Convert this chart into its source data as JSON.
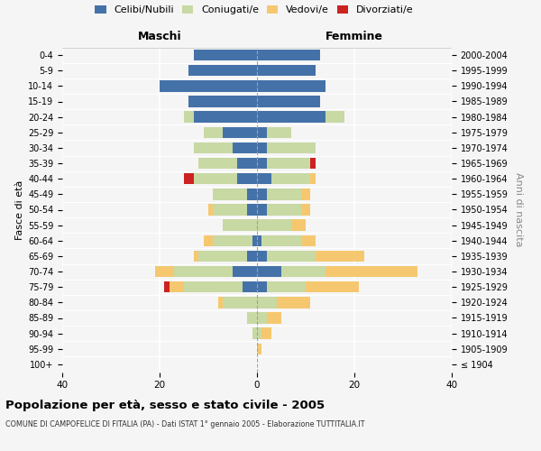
{
  "age_groups": [
    "100+",
    "95-99",
    "90-94",
    "85-89",
    "80-84",
    "75-79",
    "70-74",
    "65-69",
    "60-64",
    "55-59",
    "50-54",
    "45-49",
    "40-44",
    "35-39",
    "30-34",
    "25-29",
    "20-24",
    "15-19",
    "10-14",
    "5-9",
    "0-4"
  ],
  "birth_years": [
    "≤ 1904",
    "1905-1909",
    "1910-1914",
    "1915-1919",
    "1920-1924",
    "1925-1929",
    "1930-1934",
    "1935-1939",
    "1940-1944",
    "1945-1949",
    "1950-1954",
    "1955-1959",
    "1960-1964",
    "1965-1969",
    "1970-1974",
    "1975-1979",
    "1980-1984",
    "1985-1989",
    "1990-1994",
    "1995-1999",
    "2000-2004"
  ],
  "maschi": {
    "celibi": [
      0,
      0,
      0,
      0,
      0,
      3,
      5,
      2,
      1,
      0,
      2,
      2,
      4,
      4,
      5,
      7,
      13,
      14,
      20,
      14,
      13
    ],
    "coniugati": [
      0,
      0,
      1,
      2,
      7,
      12,
      12,
      10,
      8,
      7,
      7,
      7,
      9,
      8,
      8,
      4,
      2,
      0,
      0,
      0,
      0
    ],
    "vedovi": [
      0,
      0,
      0,
      0,
      1,
      3,
      4,
      1,
      2,
      0,
      1,
      0,
      0,
      0,
      0,
      0,
      0,
      0,
      0,
      0,
      0
    ],
    "divorziati": [
      0,
      0,
      0,
      0,
      0,
      1,
      0,
      0,
      0,
      0,
      0,
      0,
      2,
      0,
      0,
      0,
      0,
      0,
      0,
      0,
      0
    ]
  },
  "femmine": {
    "nubili": [
      0,
      0,
      0,
      0,
      0,
      2,
      5,
      2,
      1,
      0,
      2,
      2,
      3,
      2,
      2,
      2,
      14,
      13,
      14,
      12,
      13
    ],
    "coniugate": [
      0,
      0,
      1,
      2,
      4,
      8,
      9,
      10,
      8,
      7,
      7,
      7,
      8,
      9,
      10,
      5,
      4,
      0,
      0,
      0,
      0
    ],
    "vedove": [
      0,
      1,
      2,
      3,
      7,
      11,
      19,
      10,
      3,
      3,
      2,
      2,
      1,
      0,
      0,
      0,
      0,
      0,
      0,
      0,
      0
    ],
    "divorziate": [
      0,
      0,
      0,
      0,
      0,
      0,
      0,
      0,
      0,
      0,
      0,
      0,
      0,
      1,
      0,
      0,
      0,
      0,
      0,
      0,
      0
    ]
  },
  "colors": {
    "celibi": "#4472a8",
    "coniugati": "#c8d9a4",
    "vedovi": "#f5c870",
    "divorziati": "#cc2222"
  },
  "xlim": 40,
  "title": "Popolazione per età, sesso e stato civile - 2005",
  "subtitle": "COMUNE DI CAMPOFELICE DI FITALIA (PA) - Dati ISTAT 1° gennaio 2005 - Elaborazione TUTTITALIA.IT",
  "ylabel_left": "Fasce di età",
  "ylabel_right": "Anni di nascita",
  "label_maschi": "Maschi",
  "label_femmine": "Femmine",
  "legend_labels": [
    "Celibi/Nubili",
    "Coniugati/e",
    "Vedovi/e",
    "Divorziati/e"
  ],
  "bg_color": "#f5f5f5"
}
